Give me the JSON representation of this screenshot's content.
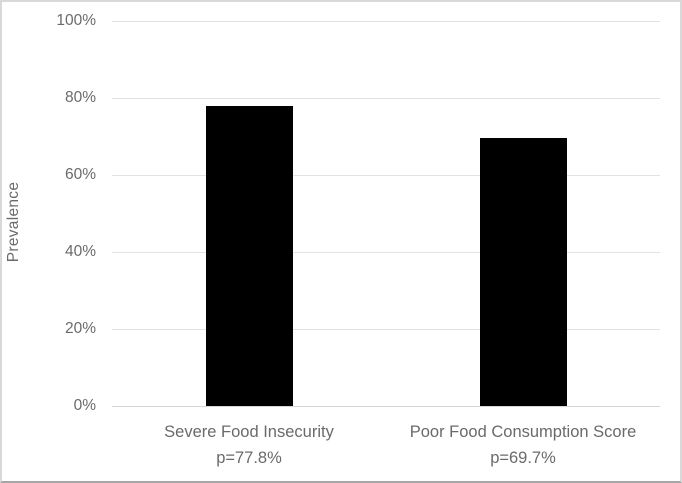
{
  "chart_data": {
    "type": "bar",
    "title": "",
    "categories": [
      "Severe Food Insecurity",
      "Poor Food Consumption Score"
    ],
    "category_sublabels": [
      "p=77.8%",
      "p=69.7%"
    ],
    "values": [
      77.8,
      69.7
    ],
    "series": [
      {
        "name": "Prevalence",
        "values": [
          77.8,
          69.7
        ]
      }
    ],
    "xlabel": "",
    "ylabel": "Prevalence",
    "ylim": [
      0,
      100
    ],
    "ytick_step": 20,
    "ytick_labels": [
      "0%",
      "20%",
      "40%",
      "60%",
      "80%",
      "100%"
    ],
    "grid": true,
    "legend": false,
    "colors": {
      "bar": "#000000",
      "gridline": "#e2e2e2",
      "axis_baseline": "#d6d6d6",
      "text": "#6a6a6a",
      "background": "#ffffff",
      "frame_border": "#d9d9d9",
      "frame_border_bottom": "#a6a6a6"
    }
  }
}
